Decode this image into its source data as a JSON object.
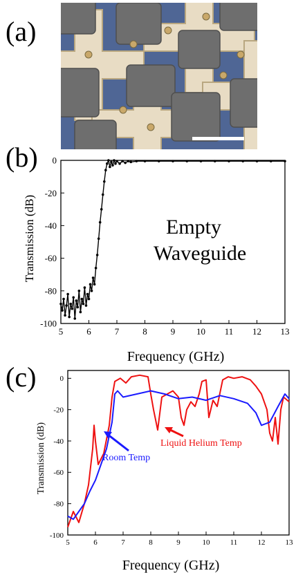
{
  "panels": {
    "a": "(a)",
    "b": "(b)",
    "c": "(c)"
  },
  "colors": {
    "empty": "#000000",
    "room": "#1a1aff",
    "helium": "#ee1111",
    "metal": "#6e6e6e",
    "gold": "#e8dcc4",
    "substrate": "#5a6f8f"
  },
  "chart_data": [
    {
      "type": "scatter",
      "xlabel": "Frequency (GHz)",
      "ylabel": "Transmission (dB)",
      "xlim": [
        5,
        13
      ],
      "ylim": [
        -100,
        0
      ],
      "xticks": [
        5,
        6,
        7,
        8,
        9,
        10,
        11,
        12,
        13
      ],
      "yticks": [
        0,
        -20,
        -40,
        -60,
        -80,
        -100
      ],
      "annotations": [
        "Empty",
        "Waveguide"
      ],
      "series": [
        {
          "points": [
            [
              5.0,
              -88
            ],
            [
              5.05,
              -92
            ],
            [
              5.1,
              -85
            ],
            [
              5.15,
              -95
            ],
            [
              5.2,
              -89
            ],
            [
              5.25,
              -82
            ],
            [
              5.3,
              -96
            ],
            [
              5.35,
              -88
            ],
            [
              5.4,
              -91
            ],
            [
              5.45,
              -84
            ],
            [
              5.5,
              -97
            ],
            [
              5.55,
              -86
            ],
            [
              5.6,
              -90
            ],
            [
              5.65,
              -80
            ],
            [
              5.7,
              -93
            ],
            [
              5.75,
              -85
            ],
            [
              5.8,
              -88
            ],
            [
              5.85,
              -78
            ],
            [
              5.9,
              -89
            ],
            [
              5.95,
              -82
            ],
            [
              6.0,
              -85
            ],
            [
              6.05,
              -76
            ],
            [
              6.1,
              -80
            ],
            [
              6.15,
              -72
            ],
            [
              6.2,
              -76
            ],
            [
              6.25,
              -66
            ],
            [
              6.3,
              -58
            ],
            [
              6.35,
              -48
            ],
            [
              6.4,
              -38
            ],
            [
              6.45,
              -30
            ],
            [
              6.5,
              -21
            ],
            [
              6.55,
              -13
            ],
            [
              6.6,
              -6
            ],
            [
              6.65,
              -2
            ],
            [
              6.7,
              0
            ],
            [
              6.75,
              -4
            ],
            [
              6.8,
              -1
            ],
            [
              6.85,
              -3
            ],
            [
              6.9,
              0
            ],
            [
              6.95,
              -2
            ],
            [
              7.0,
              -0.5
            ],
            [
              7.1,
              -2
            ],
            [
              7.2,
              -0.5
            ],
            [
              7.3,
              -1.5
            ],
            [
              7.4,
              -0.5
            ],
            [
              7.5,
              -1
            ],
            [
              7.7,
              -0.5
            ],
            [
              8.0,
              -0.5
            ],
            [
              8.5,
              -0.5
            ],
            [
              9.0,
              -0.5
            ],
            [
              9.5,
              -0.5
            ],
            [
              10.0,
              -0.5
            ],
            [
              10.5,
              -0.5
            ],
            [
              11.0,
              -0.5
            ],
            [
              11.5,
              -0.5
            ],
            [
              12.0,
              -0.5
            ],
            [
              12.5,
              -0.5
            ],
            [
              13.0,
              -0.5
            ]
          ]
        }
      ]
    },
    {
      "type": "line",
      "xlabel": "Frequency (GHz)",
      "ylabel": "Transmission (dB)",
      "xlim": [
        5,
        13
      ],
      "ylim": [
        -100,
        5
      ],
      "xticks": [
        5,
        6,
        7,
        8,
        9,
        10,
        11,
        12,
        13
      ],
      "yticks": [
        0,
        -20,
        -40,
        -60,
        -80,
        -100
      ],
      "series": [
        {
          "name": "Liquid Helium Temp",
          "points": [
            [
              5.0,
              -95
            ],
            [
              5.2,
              -85
            ],
            [
              5.4,
              -92
            ],
            [
              5.6,
              -80
            ],
            [
              5.75,
              -68
            ],
            [
              5.9,
              -45
            ],
            [
              5.95,
              -30
            ],
            [
              6.0,
              -40
            ],
            [
              6.1,
              -55
            ],
            [
              6.3,
              -48
            ],
            [
              6.5,
              -30
            ],
            [
              6.6,
              -12
            ],
            [
              6.7,
              -2
            ],
            [
              6.9,
              0
            ],
            [
              7.1,
              -3
            ],
            [
              7.3,
              1
            ],
            [
              7.6,
              2
            ],
            [
              7.9,
              1
            ],
            [
              8.0,
              -10
            ],
            [
              8.1,
              -20
            ],
            [
              8.25,
              -33
            ],
            [
              8.4,
              -12
            ],
            [
              8.6,
              -10
            ],
            [
              8.8,
              -8
            ],
            [
              9.0,
              -12
            ],
            [
              9.1,
              -25
            ],
            [
              9.2,
              -30
            ],
            [
              9.3,
              -20
            ],
            [
              9.45,
              -15
            ],
            [
              9.6,
              -18
            ],
            [
              9.75,
              -10
            ],
            [
              9.85,
              -2
            ],
            [
              10.0,
              -1
            ],
            [
              10.1,
              -25
            ],
            [
              10.25,
              -14
            ],
            [
              10.4,
              -18
            ],
            [
              10.6,
              -1
            ],
            [
              10.8,
              1
            ],
            [
              11.0,
              0
            ],
            [
              11.3,
              1
            ],
            [
              11.6,
              -1
            ],
            [
              11.8,
              -5
            ],
            [
              12.0,
              -10
            ],
            [
              12.2,
              -20
            ],
            [
              12.3,
              -35
            ],
            [
              12.4,
              -40
            ],
            [
              12.5,
              -25
            ],
            [
              12.6,
              -42
            ],
            [
              12.7,
              -20
            ],
            [
              12.8,
              -12
            ],
            [
              13.0,
              -15
            ]
          ]
        },
        {
          "name": "Room Temp",
          "points": [
            [
              5.0,
              -88
            ],
            [
              5.2,
              -90
            ],
            [
              5.4,
              -85
            ],
            [
              5.6,
              -80
            ],
            [
              5.8,
              -72
            ],
            [
              6.0,
              -65
            ],
            [
              6.2,
              -55
            ],
            [
              6.4,
              -45
            ],
            [
              6.6,
              -28
            ],
            [
              6.7,
              -10
            ],
            [
              6.8,
              -8
            ],
            [
              7.0,
              -12
            ],
            [
              7.5,
              -10
            ],
            [
              8.0,
              -8
            ],
            [
              8.5,
              -10
            ],
            [
              9.0,
              -13
            ],
            [
              9.5,
              -12
            ],
            [
              10.0,
              -14
            ],
            [
              10.5,
              -11
            ],
            [
              11.0,
              -13
            ],
            [
              11.5,
              -16
            ],
            [
              11.8,
              -22
            ],
            [
              12.0,
              -30
            ],
            [
              12.3,
              -28
            ],
            [
              12.6,
              -18
            ],
            [
              12.85,
              -10
            ],
            [
              13.0,
              -13
            ]
          ]
        }
      ]
    }
  ]
}
